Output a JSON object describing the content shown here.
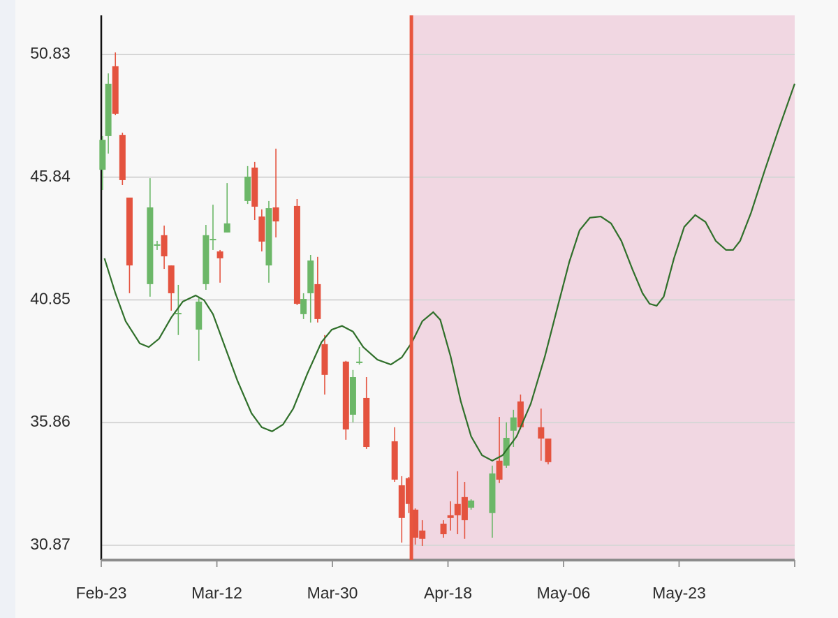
{
  "chart_data": {
    "type": "candlestick",
    "x": [
      0.2,
      1.1,
      2.2,
      3.3,
      4.4,
      7.6,
      8.7,
      9.8,
      10.9,
      12.0,
      15.2,
      16.3,
      17.4,
      18.5,
      19.6,
      22.8,
      23.9,
      25.0,
      26.1,
      27.2,
      30.5,
      31.5,
      32.6,
      33.7,
      34.8,
      38.1,
      39.2,
      40.2,
      41.3,
      45.7,
      46.8,
      47.9,
      48.9,
      50.0,
      53.3,
      54.4,
      55.5,
      56.6,
      57.6,
      60.9,
      62.0,
      63.1,
      64.2,
      65.3,
      68.5,
      69.6
    ],
    "open": [
      46.14,
      47.51,
      50.35,
      47.56,
      45.01,
      41.49,
      43.05,
      43.48,
      42.25,
      40.27,
      39.64,
      41.49,
      43.31,
      42.82,
      43.59,
      44.87,
      46.23,
      44.24,
      42.25,
      44.61,
      44.67,
      40.27,
      41.12,
      41.49,
      39.05,
      38.34,
      36.18,
      38.28,
      36.86,
      35.1,
      33.31,
      33.6,
      32.32,
      31.47,
      31.75,
      32.09,
      32.55,
      32.83,
      32.4,
      32.18,
      34.31,
      34.11,
      35.53,
      36.72,
      35.67,
      35.21
    ],
    "high": [
      47.51,
      50.06,
      50.91,
      47.65,
      45.01,
      45.8,
      43.25,
      43.87,
      42.25,
      41.46,
      40.98,
      43.9,
      44.72,
      42.88,
      45.6,
      46.29,
      46.46,
      44.53,
      44.87,
      47.0,
      44.95,
      41.12,
      42.68,
      42.6,
      39.42,
      38.37,
      38.0,
      38.93,
      37.71,
      35.67,
      33.68,
      33.65,
      32.37,
      31.89,
      31.89,
      32.66,
      33.88,
      33.45,
      32.74,
      34.11,
      36.09,
      35.87,
      36.38,
      37.0,
      36.43,
      35.21
    ],
    "low": [
      45.32,
      46.8,
      48.36,
      45.52,
      41.12,
      40.98,
      42.88,
      42.11,
      40.41,
      39.42,
      38.37,
      41.26,
      42.88,
      41.55,
      43.59,
      44.75,
      44.1,
      42.82,
      41.55,
      43.39,
      40.64,
      40.07,
      39.93,
      39.93,
      37.0,
      35.16,
      35.87,
      38.22,
      34.79,
      33.45,
      30.98,
      32.18,
      30.9,
      30.84,
      31.18,
      31.47,
      31.32,
      31.13,
      32.32,
      31.18,
      33.4,
      34.02,
      34.87,
      35.58,
      34.31,
      34.16
    ],
    "close": [
      47.36,
      49.64,
      48.42,
      45.72,
      42.25,
      44.61,
      43.11,
      42.62,
      41.12,
      40.32,
      40.78,
      43.48,
      43.33,
      42.54,
      43.96,
      45.86,
      44.64,
      43.22,
      44.58,
      44.04,
      40.69,
      40.89,
      42.45,
      40.07,
      37.8,
      35.58,
      37.71,
      38.34,
      34.87,
      33.54,
      31.98,
      32.55,
      31.18,
      31.13,
      31.32,
      31.98,
      32.09,
      31.89,
      32.69,
      33.79,
      33.54,
      35.24,
      36.07,
      35.67,
      35.21,
      34.25
    ],
    "up_color": "#6cb768",
    "down_color": "#e4533f",
    "forecast": {
      "color": "#2f6f2a",
      "x": [
        0.5,
        2.2,
        3.8,
        6.0,
        7.4,
        9.0,
        10.9,
        12.7,
        14.7,
        16.0,
        17.4,
        19.0,
        21.2,
        23.4,
        25.0,
        26.6,
        28.3,
        29.9,
        32.1,
        34.3,
        35.9,
        37.5,
        39.2,
        40.8,
        43.0,
        45.1,
        46.8,
        48.4,
        50.0,
        51.7,
        52.8,
        54.4,
        56.0,
        57.6,
        59.3,
        60.9,
        62.5,
        64.7,
        66.9,
        69.1,
        71.2,
        72.9,
        74.5,
        76.1,
        77.8,
        79.4,
        81.0,
        82.7,
        84.3,
        85.4,
        86.5,
        87.6,
        89.2,
        90.8,
        92.5,
        94.1,
        95.7,
        97.3,
        98.4,
        99.5,
        101.2,
        103.3,
        105.5,
        108.0
      ],
      "values": [
        42.54,
        41.12,
        39.98,
        39.08,
        38.93,
        39.27,
        40.13,
        40.78,
        41.03,
        40.84,
        40.27,
        39.13,
        37.57,
        36.24,
        35.67,
        35.5,
        35.78,
        36.43,
        37.85,
        39.13,
        39.64,
        39.79,
        39.56,
        38.93,
        38.42,
        38.22,
        38.51,
        39.13,
        39.98,
        40.35,
        40.04,
        38.56,
        36.72,
        35.3,
        34.53,
        34.31,
        34.53,
        35.3,
        36.63,
        38.56,
        40.69,
        42.4,
        43.68,
        44.19,
        44.24,
        43.96,
        43.25,
        42.11,
        41.12,
        40.69,
        40.61,
        40.98,
        42.54,
        43.82,
        44.3,
        44.02,
        43.25,
        42.88,
        42.88,
        43.25,
        44.39,
        46.09,
        47.79,
        49.64
      ]
    },
    "forecast_start": 48.3,
    "marker_color": "#e8553e",
    "shade_color": "#f1d7e2",
    "xlim": [
      0,
      108
    ],
    "xticks": [
      {
        "value": 0,
        "label": "Feb-23"
      },
      {
        "value": 18,
        "label": "Mar-12"
      },
      {
        "value": 36,
        "label": "Mar-30"
      },
      {
        "value": 54,
        "label": "Apr-18"
      },
      {
        "value": 72,
        "label": "May-06"
      },
      {
        "value": 90,
        "label": "May-23"
      },
      {
        "value": 108,
        "label": null
      }
    ],
    "ylim": [
      30.27,
      52.42
    ],
    "yticks": [
      30.87,
      35.86,
      40.85,
      45.84,
      50.83
    ],
    "grid": true
  }
}
